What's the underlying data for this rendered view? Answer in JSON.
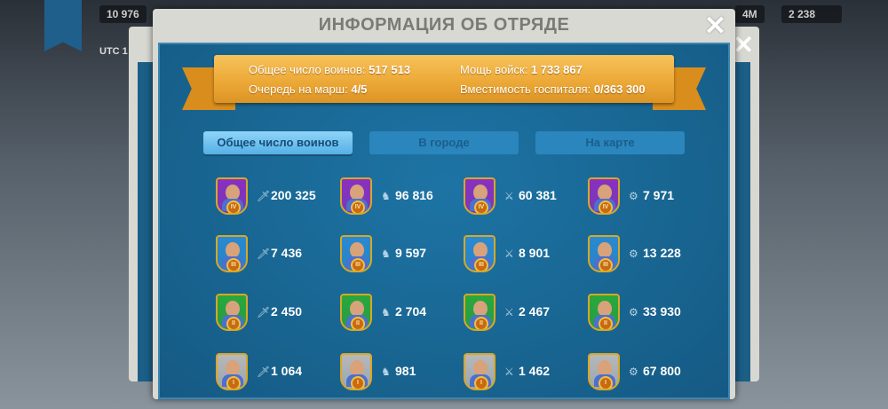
{
  "background": {
    "stat_left": "10 976",
    "utc": "UTC 1",
    "stat_right_1": "4M",
    "stat_right_2": "2 238"
  },
  "dialog": {
    "title": "ИНФОРМАЦИЯ ОБ ОТРЯДЕ",
    "close": "✕"
  },
  "summary": {
    "total_label": "Общее число воинов:",
    "total_value": "517 513",
    "power_label": "Мощь войск:",
    "power_value": "1 733 867",
    "queue_label": "Очередь на марш:",
    "queue_value": "4/5",
    "hospital_label": "Вместимость госпиталя:",
    "hospital_value": "0/363 300"
  },
  "tabs": [
    {
      "label": "Общее число воинов",
      "active": true
    },
    {
      "label": "В городе",
      "active": false
    },
    {
      "label": "На карте",
      "active": false
    }
  ],
  "colors": {
    "tier_IV": "#8a2fc0",
    "tier_III": "#2a8ad0",
    "tier_II": "#2aa83a",
    "tier_I": "#b8b8b8"
  },
  "type_icons": [
    "sword-icon",
    "horse-icon",
    "bow-icon",
    "siege-icon"
  ],
  "units": [
    [
      {
        "tier": "IV",
        "count": "200 325"
      },
      {
        "tier": "IV",
        "count": "96 816"
      },
      {
        "tier": "IV",
        "count": "60 381"
      },
      {
        "tier": "IV",
        "count": "7 971"
      }
    ],
    [
      {
        "tier": "III",
        "count": "7 436"
      },
      {
        "tier": "III",
        "count": "9 597"
      },
      {
        "tier": "III",
        "count": "8 901"
      },
      {
        "tier": "III",
        "count": "13 228"
      }
    ],
    [
      {
        "tier": "II",
        "count": "2 450"
      },
      {
        "tier": "II",
        "count": "2 704"
      },
      {
        "tier": "II",
        "count": "2 467"
      },
      {
        "tier": "II",
        "count": "33 930"
      }
    ],
    [
      {
        "tier": "I",
        "count": "1 064"
      },
      {
        "tier": "I",
        "count": "981"
      },
      {
        "tier": "I",
        "count": "1 462"
      },
      {
        "tier": "I",
        "count": "67 800"
      }
    ]
  ]
}
